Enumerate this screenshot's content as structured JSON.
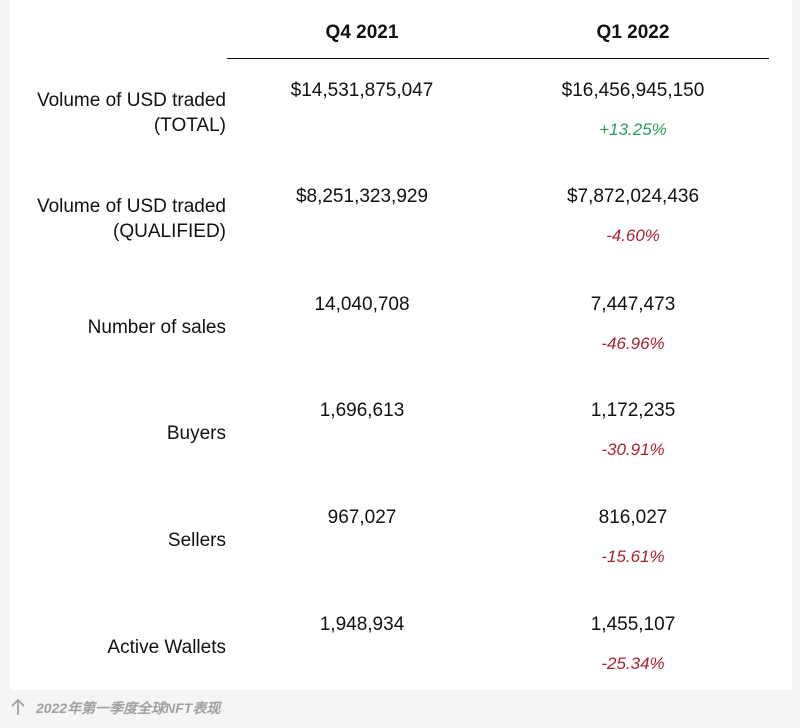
{
  "chart_data": {
    "type": "table",
    "columns": [
      "Q4 2021",
      "Q1 2022"
    ],
    "rows": [
      {
        "label_lines": [
          "Volume of USD traded",
          "(TOTAL)"
        ],
        "q4": "$14,531,875,047",
        "q1": "$16,456,945,150",
        "change": "+13.25%",
        "change_sign": "positive"
      },
      {
        "label_lines": [
          "Volume of USD traded",
          "(QUALIFIED)"
        ],
        "q4": "$8,251,323,929",
        "q1": "$7,872,024,436",
        "change": "-4.60%",
        "change_sign": "negative"
      },
      {
        "label_lines": [
          "Number of sales"
        ],
        "q4": "14,040,708",
        "q1": "7,447,473",
        "change": "-46.96%",
        "change_sign": "negative"
      },
      {
        "label_lines": [
          "Buyers"
        ],
        "q4": "1,696,613",
        "q1": "1,172,235",
        "change": "-30.91%",
        "change_sign": "negative"
      },
      {
        "label_lines": [
          "Sellers"
        ],
        "q4": "967,027",
        "q1": "816,027",
        "change": "-15.61%",
        "change_sign": "negative"
      },
      {
        "label_lines": [
          "Active Wallets"
        ],
        "q4": "1,948,934",
        "q1": "1,455,107",
        "change": "-25.34%",
        "change_sign": "negative"
      }
    ]
  },
  "colors": {
    "positive": "#2e9a5c",
    "negative": "#a82330",
    "caption": "#a0a0a0"
  },
  "caption": {
    "text": "2022年第一季度全球NFT表现",
    "icon": "arrow-up-icon"
  }
}
